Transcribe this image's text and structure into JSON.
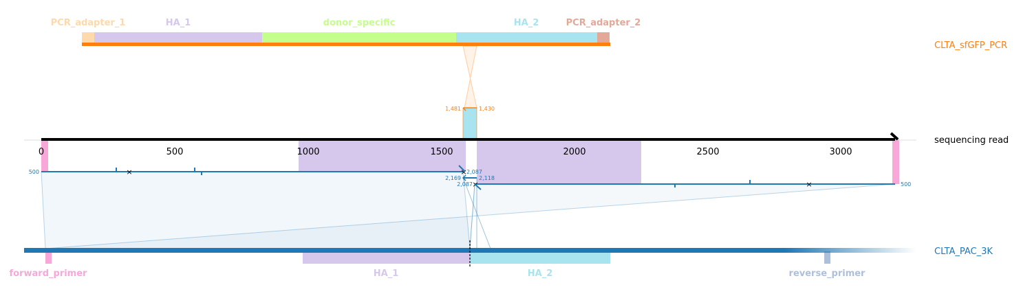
{
  "colors": {
    "pcr_adapter_1": "#fdd9ac",
    "ha_1": "#d6c8ec",
    "donor_specific": "#c4ff8c",
    "ha_2": "#a8e4ef",
    "pcr_adapter_2": "#e4a898",
    "forward_primer": "#f7a8d8",
    "reverse_primer": "#aebfda",
    "reference_bar": "#ff7f0e",
    "read_axis": "#000000",
    "target_bar": "#1f77b4",
    "alignment": "#1f77b4",
    "pcr_label_color": "#ff7f0e"
  },
  "top_features": {
    "pcr_adapter_1": "PCR_adapter_1",
    "ha_1": "HA_1",
    "donor_specific": "donor_specific",
    "ha_2": "HA_2",
    "pcr_adapter_2": "PCR_adapter_2"
  },
  "tracks": {
    "donor": "CLTA_sfGFP_PCR",
    "read": "sequencing read",
    "target": "CLTA_PAC_3K"
  },
  "bottom_features": {
    "forward_primer": "forward_primer",
    "ha_1": "HA_1",
    "ha_2": "HA_2",
    "reverse_primer": "reverse_primer"
  },
  "axis": {
    "ticks": [
      "0",
      "500",
      "1000",
      "1500",
      "2000",
      "2500",
      "3000"
    ]
  },
  "annotations": {
    "donor_left": "1,481",
    "donor_right": "1,430",
    "align1_left_end": "500",
    "align1_right_end": "2,087",
    "align2_left": "2,169",
    "align2_right": "2,118",
    "align3_left": "2,087",
    "align3_right_end": "500"
  }
}
